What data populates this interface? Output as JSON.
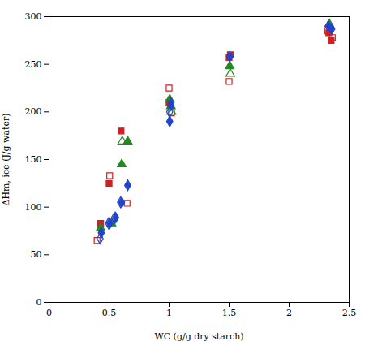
{
  "chart_data": {
    "type": "scatter",
    "xlabel": "WC (g/g dry starch)",
    "ylabel": "ΔHm, ice (J/g water)",
    "xlim": [
      0,
      2.5
    ],
    "ylim": [
      0,
      300
    ],
    "xticks": [
      0,
      0.5,
      1,
      1.5,
      2,
      2.5
    ],
    "yticks": [
      0,
      50,
      100,
      150,
      200,
      250,
      300
    ],
    "series": [
      {
        "color": "#cc2222",
        "marker": "square",
        "x": [
          0.43,
          0.5,
          0.6,
          1.0,
          1.01,
          1.5,
          1.51,
          2.33,
          2.35
        ],
        "values": [
          83,
          125,
          180,
          210,
          207,
          257,
          260,
          283,
          275
        ]
      },
      {
        "color": "#cc2222",
        "marker": "square-open",
        "x": [
          0.4,
          0.505,
          0.65,
          1.0,
          1.02,
          1.5,
          2.32,
          2.36
        ],
        "values": [
          65,
          133,
          104,
          225,
          199,
          232,
          285,
          278
        ]
      },
      {
        "color": "#228822",
        "marker": "triangle",
        "x": [
          0.43,
          0.52,
          0.605,
          0.655,
          1.005,
          1.015,
          1.505,
          2.335
        ],
        "values": [
          78,
          83,
          145,
          169,
          213,
          206,
          248,
          292
        ]
      },
      {
        "color": "#228822",
        "marker": "triangle-open",
        "x": [
          0.61,
          1.02,
          1.51
        ],
        "values": [
          169,
          200,
          240
        ]
      },
      {
        "color": "#2244cc",
        "marker": "diamond",
        "x": [
          0.435,
          0.505,
          0.555,
          0.605,
          0.655,
          1.005,
          1.015,
          1.505,
          2.325,
          2.355
        ],
        "values": [
          73,
          83,
          89,
          105,
          123,
          190,
          209,
          258,
          290,
          287
        ]
      },
      {
        "color": "#2244cc",
        "marker": "diamond-open",
        "x": [
          0.425,
          0.495,
          0.545,
          0.595,
          1.005,
          1.015
        ],
        "values": [
          67,
          83,
          89,
          105,
          200,
          207
        ]
      }
    ]
  }
}
